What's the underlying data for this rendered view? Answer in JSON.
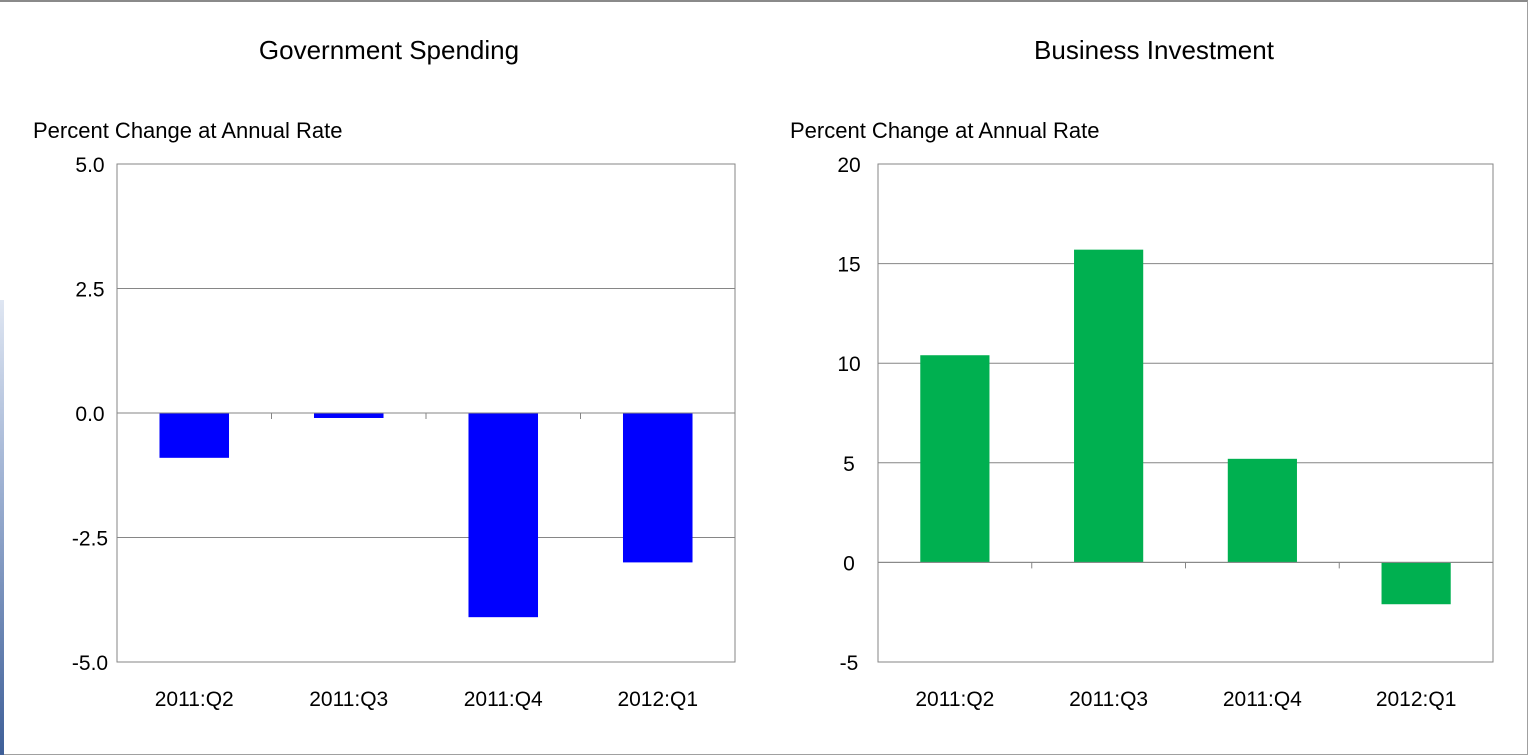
{
  "chart_data": [
    {
      "type": "bar",
      "title": "Government Spending",
      "ylabel": "Percent Change at Annual Rate",
      "xlabel": "",
      "categories": [
        "2011:Q2",
        "2011:Q3",
        "2011:Q4",
        "2012:Q1"
      ],
      "values": [
        -0.9,
        -0.1,
        -4.1,
        -3.0
      ],
      "ylim": [
        -5.0,
        5.0
      ],
      "yticks": [
        "5.0",
        "2.5",
        "0.0",
        "-2.5",
        "-5.0"
      ],
      "ytick_values": [
        5.0,
        2.5,
        0.0,
        -2.5,
        -5.0
      ],
      "color": "#0000ff",
      "grid": true,
      "legend": "none"
    },
    {
      "type": "bar",
      "title": "Business Investment",
      "ylabel": "Percent Change at Annual Rate",
      "xlabel": "",
      "categories": [
        "2011:Q2",
        "2011:Q3",
        "2011:Q4",
        "2012:Q1"
      ],
      "values": [
        10.4,
        15.7,
        5.2,
        -2.1
      ],
      "ylim": [
        -5,
        20
      ],
      "yticks": [
        "20",
        "15",
        "10",
        "5",
        "0",
        "-5"
      ],
      "ytick_values": [
        20,
        15,
        10,
        5,
        0,
        -5
      ],
      "color": "#00b050",
      "grid": true,
      "legend": "none"
    }
  ]
}
